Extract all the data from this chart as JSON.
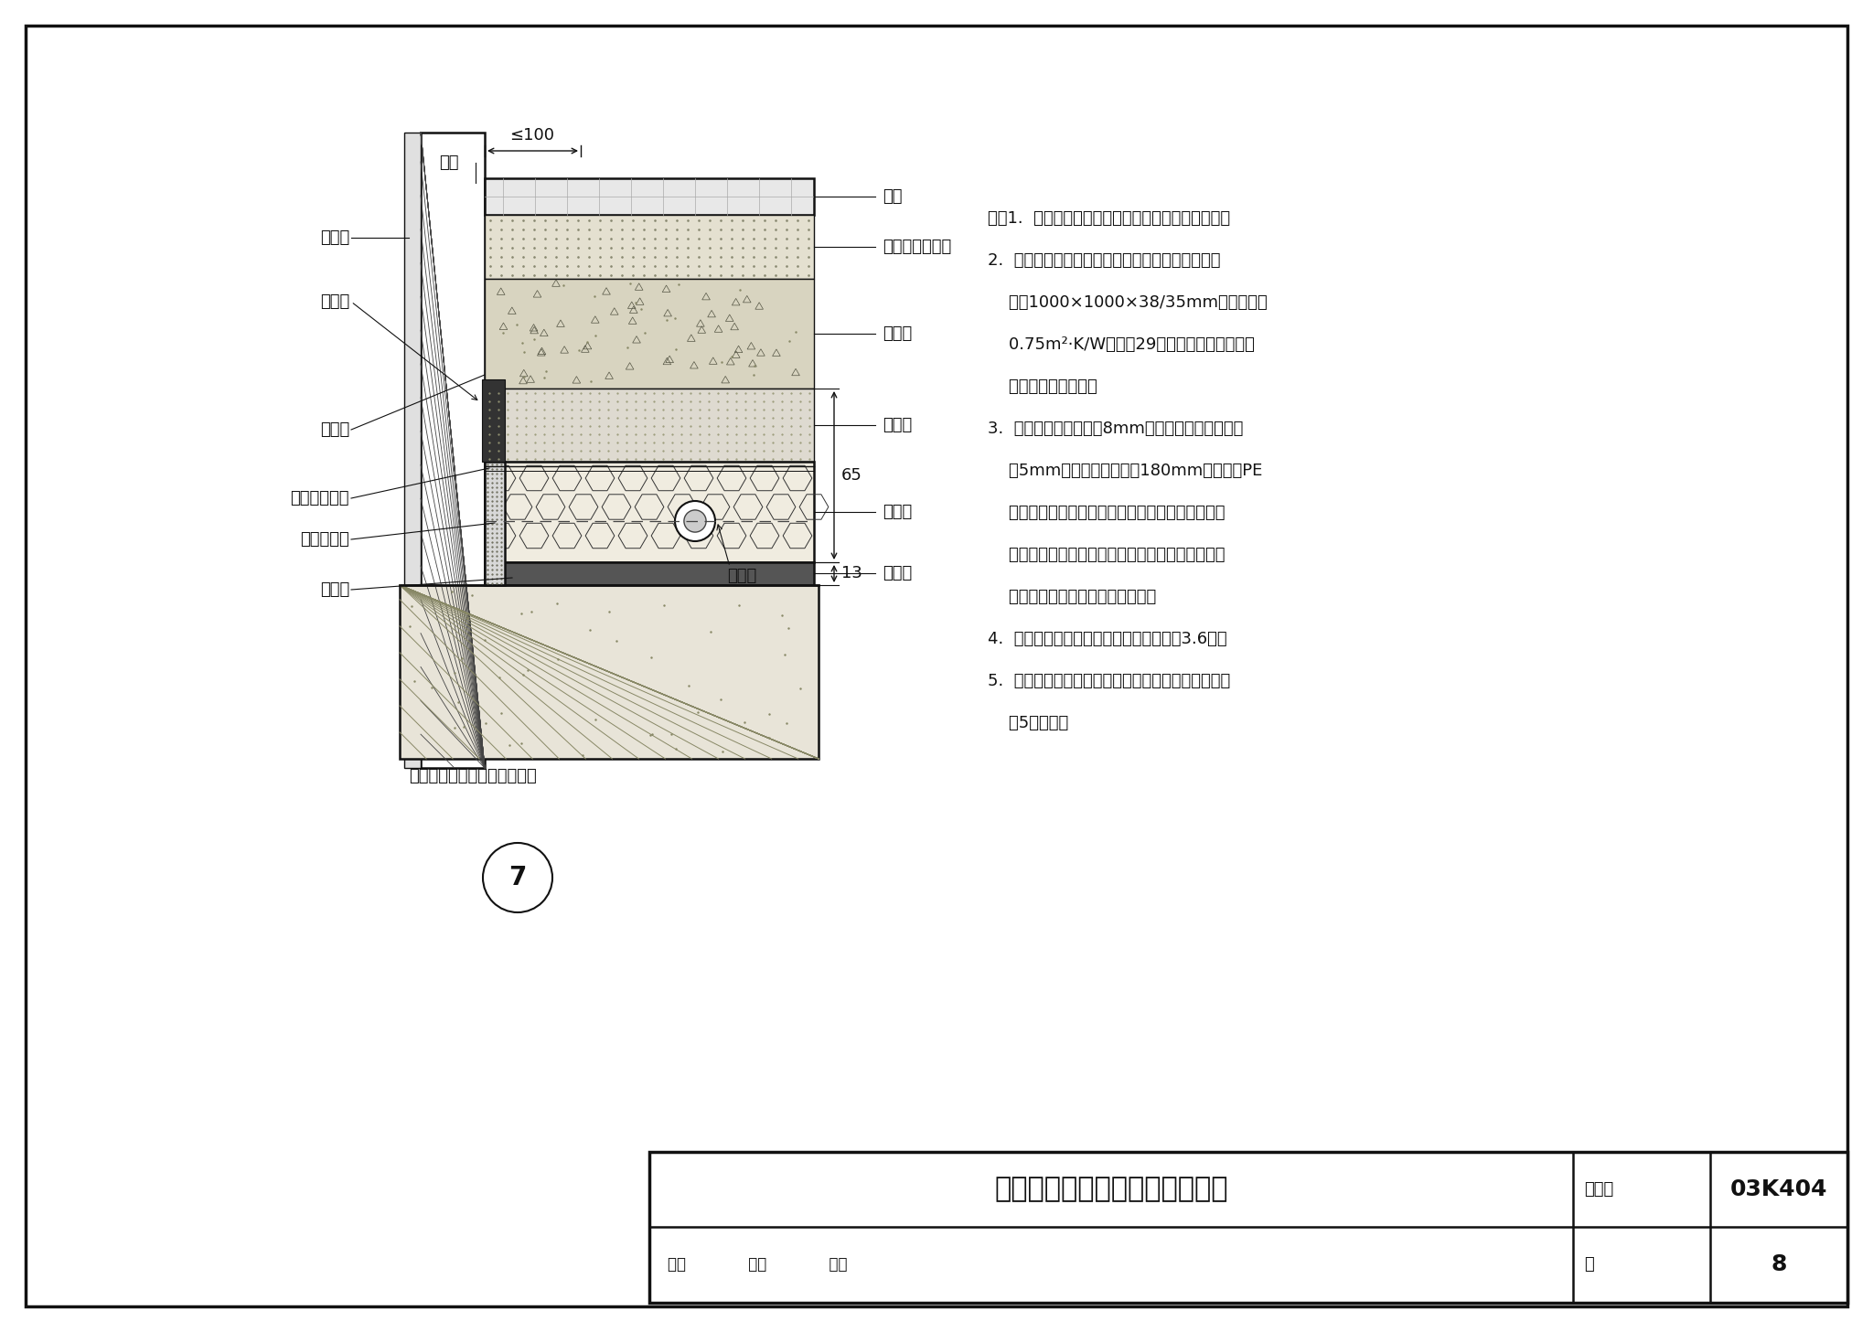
{
  "bg_color": "#ffffff",
  "border_color": "#111111",
  "title": "低温热水地板辐射供暖地面做法",
  "figure_number": "03K404",
  "page_label": "图集号",
  "page_num": "8",
  "page_word": "页",
  "diagram_number": "7",
  "left_labels": [
    "外墙",
    "抹灰层",
    "踢脚板",
    "密封青",
    "复合塑料薄膜",
    "边界保温带",
    "防潮层"
  ],
  "right_labels": [
    "地砖",
    "干硬性水泥砂浆",
    "现浇层",
    "保护层",
    "绝热层",
    "防潮层"
  ],
  "bottom_label": "与土壤或室外空气接触的地板",
  "pipe_label": "塑料管",
  "dim_label": "≤100",
  "note_lines": [
    "注：1.  当楼板上下均为供暖房间时，可不设防潮层。",
    "2.  绝热层：本页为带复合保护层的聚苯乙烯板（规",
    "    格：1000×1000×38/35mm），热阻为",
    "    0.75m²·K/W（见第29页）。当要求更高时，",
    "    可采用下一页做法。",
    "3.  边界保温带：本页为8mm厚的聚乙烯泡沫塑料，",
    "    有5mm的压缩量（规格：180mm），复合PE",
    "    膜可搭接覆盖在绝热层上，以避免现浇混凝土落入",
    "    绝热层缝隙。边界保温带应高出现浇层，待地面精",
    "    装修施工完成后，截去多余部分。",
    "4.  塑料管及管卡：塑料管材质见说明的第3.6条。",
    "5.  不设踢脚时，边界保温带上部应用密封青密封，如",
    "    第5页所示。"
  ],
  "dim_65": "65",
  "dim_13": "13",
  "approve_text": "审核",
  "check_text": "校对",
  "design_text": "设计"
}
